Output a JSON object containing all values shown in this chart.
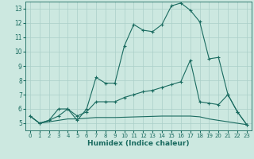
{
  "xlabel": "Humidex (Indice chaleur)",
  "bg_color": "#cce8e0",
  "grid_color": "#aacfc8",
  "line_color": "#1a6b60",
  "xlim": [
    -0.5,
    23.5
  ],
  "ylim": [
    4.5,
    13.5
  ],
  "xticks": [
    0,
    1,
    2,
    3,
    4,
    5,
    6,
    7,
    8,
    9,
    10,
    11,
    12,
    13,
    14,
    15,
    16,
    17,
    18,
    19,
    20,
    21,
    22,
    23
  ],
  "yticks": [
    5,
    6,
    7,
    8,
    9,
    10,
    11,
    12,
    13
  ],
  "series1_x": [
    0,
    1,
    2,
    3,
    4,
    5,
    6,
    7,
    8,
    9,
    10,
    11,
    12,
    13,
    14,
    15,
    16,
    17,
    18,
    19,
    20,
    21,
    22,
    23
  ],
  "series1_y": [
    5.5,
    5.0,
    5.2,
    6.0,
    6.0,
    5.2,
    6.0,
    8.2,
    7.8,
    7.8,
    10.4,
    11.9,
    11.5,
    11.4,
    11.9,
    13.2,
    13.4,
    12.9,
    12.1,
    9.5,
    9.6,
    7.0,
    5.8,
    4.9
  ],
  "series2_x": [
    0,
    1,
    2,
    3,
    4,
    5,
    6,
    7,
    8,
    9,
    10,
    11,
    12,
    13,
    14,
    15,
    16,
    17,
    18,
    19,
    20,
    21,
    22,
    23
  ],
  "series2_y": [
    5.5,
    5.0,
    5.2,
    5.5,
    6.0,
    5.5,
    5.8,
    6.5,
    6.5,
    6.5,
    6.8,
    7.0,
    7.2,
    7.3,
    7.5,
    7.7,
    7.9,
    9.4,
    6.5,
    6.4,
    6.3,
    7.0,
    5.8,
    4.9
  ],
  "series3_x": [
    0,
    1,
    2,
    3,
    4,
    5,
    6,
    7,
    8,
    9,
    10,
    11,
    12,
    13,
    14,
    15,
    16,
    17,
    18,
    19,
    20,
    21,
    22,
    23
  ],
  "series3_y": [
    5.5,
    5.0,
    5.1,
    5.2,
    5.3,
    5.3,
    5.35,
    5.4,
    5.4,
    5.4,
    5.42,
    5.44,
    5.46,
    5.48,
    5.5,
    5.5,
    5.5,
    5.5,
    5.45,
    5.3,
    5.2,
    5.1,
    5.0,
    4.9
  ]
}
